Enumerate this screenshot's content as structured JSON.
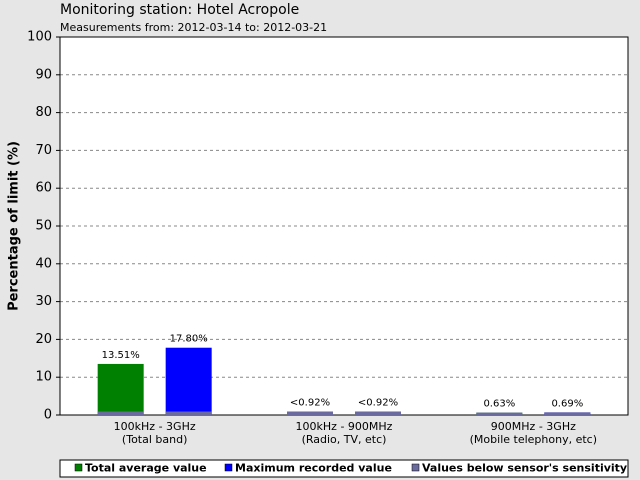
{
  "chart_data": {
    "type": "bar",
    "title": "Monitoring station: Hotel Acropole",
    "subtitle": "Measurements from: 2012-03-14 to: 2012-03-21",
    "y_label": "Percentage of limit (%)",
    "categories": [
      "100kHz - 3GHz\n(Total band)",
      "100kHz - 900MHz\n(Radio, TV, etc)",
      "900MHz - 3GHz\n(Mobile telephony, etc)"
    ],
    "series": [
      {
        "name": "Total average value",
        "color": "#008000",
        "values": [
          13.51,
          0.92,
          0.63
        ],
        "value_labels": [
          "13.51%",
          "<0.92%",
          "0.63%"
        ]
      },
      {
        "name": "Maximum recorded value",
        "color": "#0000ff",
        "values": [
          17.8,
          0.92,
          0.69
        ],
        "value_labels": [
          "17.80%",
          "<0.92%",
          "0.69%"
        ]
      },
      {
        "name": "Values below sensor's sensitivity",
        "color": "#6a6a9e",
        "values": [
          0.92,
          0.92,
          0.92
        ]
      }
    ],
    "ylim": [
      0,
      100
    ],
    "yticks": [
      0,
      10,
      20,
      30,
      40,
      50,
      60,
      70,
      80,
      90,
      100
    ],
    "grid": true
  }
}
